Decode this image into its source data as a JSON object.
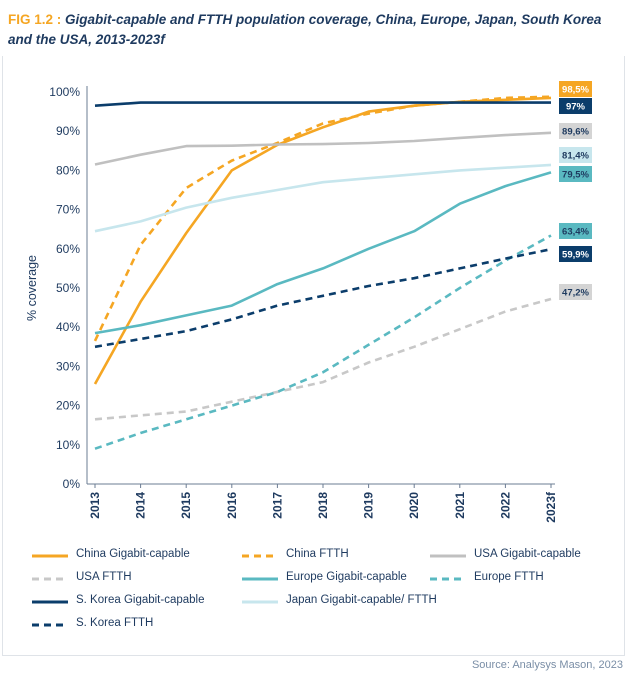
{
  "figure": {
    "number": "FIG 1.2 :",
    "title": "Gigabit-capable and FTTH population coverage, China, Europe, Japan, South Korea and the USA, 2013-2023f",
    "source": "Source: Analysys Mason, 2023"
  },
  "chart_data": {
    "type": "line",
    "title": "Gigabit-capable and FTTH population coverage, China, Europe, Japan, South Korea and the USA, 2013-2023f",
    "xlabel": "",
    "ylabel": "% coverage",
    "categories": [
      "2013",
      "2014",
      "2015",
      "2016",
      "2017",
      "2018",
      "2019",
      "2020",
      "2021",
      "2022",
      "2023f"
    ],
    "ylim": [
      0,
      100
    ],
    "yticks": [
      "0%",
      "10%",
      "20%",
      "30%",
      "40%",
      "50%",
      "60%",
      "70%",
      "80%",
      "90%",
      "100%"
    ],
    "grid": false,
    "legend_position": "bottom",
    "series": [
      {
        "name": "China Gigabit-capable",
        "color": "#f5a623",
        "dash": "solid",
        "values": [
          25.5,
          46.5,
          64,
          80,
          86.5,
          91,
          95,
          96.5,
          97.5,
          98,
          98.5
        ],
        "end_label": "98,5%"
      },
      {
        "name": "China FTTH",
        "color": "#f5a623",
        "dash": "dashed",
        "values": [
          36.5,
          61,
          75.5,
          82.5,
          87,
          92,
          94.5,
          96.5,
          97.5,
          98.5,
          98.8
        ],
        "end_label": ""
      },
      {
        "name": "USA Gigabit-capable",
        "color": "#c0c0c0",
        "dash": "solid",
        "values": [
          81.5,
          84,
          86.2,
          86.3,
          86.6,
          86.7,
          87,
          87.5,
          88.3,
          89,
          89.6
        ],
        "end_label": "89,6%"
      },
      {
        "name": "USA FTTH",
        "color": "#c8c8c8",
        "dash": "dashed",
        "values": [
          16.5,
          17.5,
          18.5,
          21,
          23.5,
          26,
          31,
          35,
          39.5,
          44,
          47.2
        ],
        "end_label": "47,2%"
      },
      {
        "name": "Europe Gigabit-capable",
        "color": "#5ab9c1",
        "dash": "solid",
        "values": [
          38.5,
          40.5,
          43,
          45.5,
          51,
          55,
          60,
          64.5,
          71.5,
          76,
          79.5
        ],
        "end_label": "79,5%"
      },
      {
        "name": "Europe FTTH",
        "color": "#5ab9c1",
        "dash": "dashed",
        "values": [
          9,
          13,
          16.5,
          20,
          23.5,
          28.5,
          35.5,
          42.5,
          50,
          57,
          63.4
        ],
        "end_label": "63,4%"
      },
      {
        "name": "S. Korea Gigabit-capable",
        "color": "#0b3d6b",
        "dash": "solid",
        "values": [
          96.5,
          97.3,
          97.3,
          97.3,
          97.3,
          97.3,
          97.3,
          97.3,
          97.3,
          97.3,
          97.3
        ],
        "end_label": "97%"
      },
      {
        "name": "Japan Gigabit-capable/ FTTH",
        "color": "#c7e6ed",
        "dash": "solid",
        "values": [
          64.5,
          67,
          70.5,
          73,
          75,
          77,
          78,
          79,
          80,
          80.7,
          81.4
        ],
        "end_label": "81,4%"
      },
      {
        "name": "S. Korea FTTH",
        "color": "#0b3d6b",
        "dash": "dashed",
        "values": [
          35,
          37,
          39,
          42,
          45.5,
          48,
          50.5,
          52.5,
          55,
          57.5,
          59.9
        ],
        "end_label": "59,9%"
      }
    ]
  }
}
